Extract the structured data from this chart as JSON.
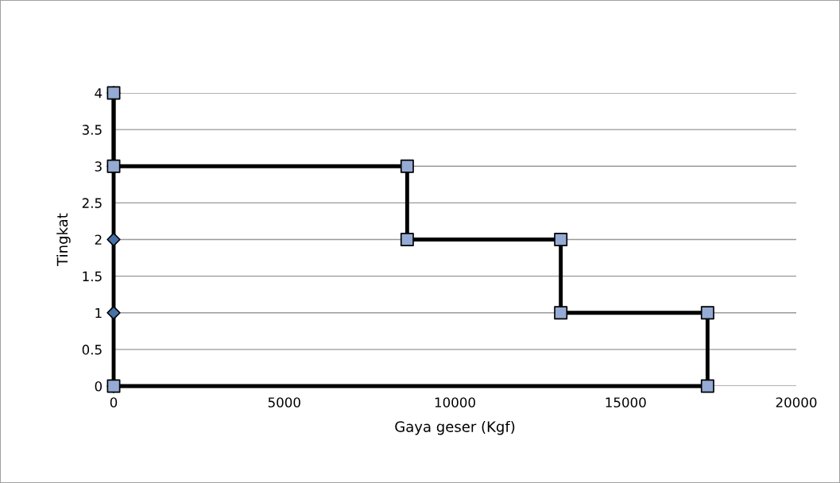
{
  "chart_data": {
    "type": "line",
    "xlabel": "Gaya geser (Kgf)",
    "ylabel": "Tingkat",
    "series": [
      {
        "color": "#000000",
        "marker": "diamond",
        "colors": [
          "#4572a7",
          "#4572a7",
          "#4572a7",
          "#4572a7",
          "#4572a7"
        ],
        "x": [
          0,
          0,
          0,
          0,
          0
        ],
        "values": [
          0,
          1,
          2,
          3,
          4
        ]
      },
      {
        "color": "#000000",
        "marker": "square",
        "colors": [
          "#95abd4",
          "#95abd4",
          "#95abd4",
          "#95abd4",
          "#95abd4",
          "#95abd4",
          "#95abd4",
          "#95abd4",
          "#95abd4"
        ],
        "x": [
          0,
          0,
          8600,
          8600,
          13100,
          13100,
          17400,
          17400,
          0
        ],
        "values": [
          4,
          3,
          3,
          2,
          2,
          1,
          1,
          0,
          0
        ]
      }
    ],
    "xlim": [
      0,
      20000
    ],
    "xticks": [
      0,
      5000,
      10000,
      15000,
      20000
    ],
    "ylim": [
      0,
      4
    ],
    "yticks": [
      0,
      0.5,
      1,
      1.5,
      2,
      2.5,
      3,
      3.5,
      4
    ],
    "grid": "y",
    "line_style": "solid"
  }
}
